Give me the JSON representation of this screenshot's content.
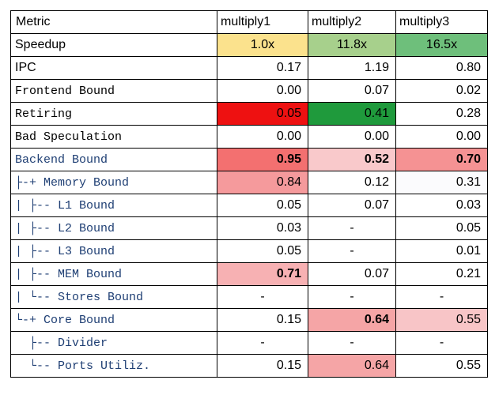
{
  "header": [
    "Metric",
    "multiply1",
    "multiply2",
    "multiply3"
  ],
  "rows": [
    {
      "label": "Speedup",
      "values": [
        "1.0x",
        "11.8x",
        "16.5x"
      ],
      "colors": [
        "#fbe28d",
        "#a7d08c",
        "#6ebf7b"
      ]
    },
    {
      "label": "IPC",
      "values": [
        "0.17",
        "1.19",
        "0.80"
      ],
      "colors": [
        "",
        "",
        ""
      ]
    },
    {
      "label": "Frontend Bound",
      "values": [
        "0.00",
        "0.07",
        "0.02"
      ],
      "colors": [
        "",
        "",
        ""
      ]
    },
    {
      "label": "Retiring",
      "values": [
        "0.05",
        "0.41",
        "0.28"
      ],
      "colors": [
        "#ee1111",
        "#1f9a3c",
        ""
      ]
    },
    {
      "label": "Bad Speculation",
      "values": [
        "0.00",
        "0.00",
        "0.00"
      ],
      "colors": [
        "",
        "",
        ""
      ]
    },
    {
      "label": "Backend Bound",
      "values": [
        "0.95",
        "0.52",
        "0.70"
      ],
      "colors": [
        "#f37070",
        "#f9c9cb",
        "#f59293"
      ]
    },
    {
      "label": "├-+ Memory Bound",
      "values": [
        "0.84",
        "0.12",
        "0.31"
      ],
      "colors": [
        "#f59a9c",
        "",
        "#fbfbfd"
      ]
    },
    {
      "label": "| ├-- L1 Bound",
      "values": [
        "0.05",
        "0.07",
        "0.03"
      ],
      "colors": [
        "",
        "",
        ""
      ]
    },
    {
      "label": "| ├-- L2 Bound",
      "values": [
        "0.03",
        "-",
        "0.05"
      ],
      "colors": [
        "",
        "",
        ""
      ]
    },
    {
      "label": "| ├-- L3 Bound",
      "values": [
        "0.05",
        "-",
        "0.01"
      ],
      "colors": [
        "",
        "",
        ""
      ]
    },
    {
      "label": "| ├-- MEM Bound",
      "values": [
        "0.71",
        "0.07",
        "0.21"
      ],
      "colors": [
        "#f7b1b3",
        "",
        ""
      ]
    },
    {
      "label": "| └-- Stores Bound",
      "values": [
        "-",
        "-",
        "-"
      ],
      "colors": [
        "",
        "",
        ""
      ]
    },
    {
      "label": "└-+ Core Bound",
      "values": [
        "0.15",
        "0.64",
        "0.55"
      ],
      "colors": [
        "",
        "#f5a5a6",
        "#f8c5c7"
      ]
    },
    {
      "label": "  ├-- Divider",
      "values": [
        "-",
        "-",
        "-"
      ],
      "colors": [
        "",
        "",
        ""
      ]
    },
    {
      "label": "  └-- Ports Utiliz.",
      "values": [
        "0.15",
        "0.64",
        "0.55"
      ],
      "colors": [
        "",
        "#f5a5a6",
        ""
      ]
    }
  ]
}
